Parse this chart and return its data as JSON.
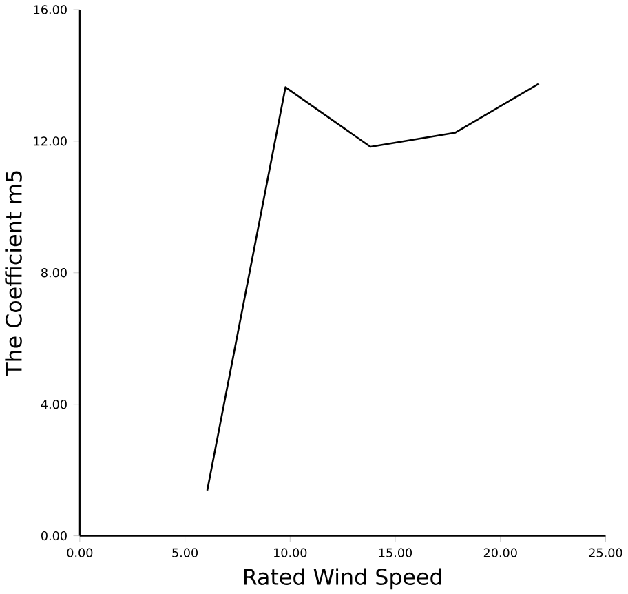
{
  "chart_data": {
    "type": "line",
    "xlabel": "Rated Wind Speed",
    "ylabel": "The Coefficient m5",
    "x": [
      6.06,
      9.78,
      13.82,
      17.86,
      21.83
    ],
    "series": [
      {
        "color": "#000000",
        "values": [
          1.38,
          13.64,
          11.83,
          12.26,
          13.75
        ]
      }
    ],
    "xlim": [
      0,
      25
    ],
    "ylim": [
      0,
      16
    ],
    "xticks": [
      {
        "value": 0,
        "label": "0.00"
      },
      {
        "value": 5,
        "label": "5.00"
      },
      {
        "value": 10,
        "label": "10.00"
      },
      {
        "value": 15,
        "label": "15.00"
      },
      {
        "value": 20,
        "label": "20.00"
      },
      {
        "value": 25,
        "label": "25.00"
      }
    ],
    "yticks": [
      {
        "value": 0,
        "label": "0.00"
      },
      {
        "value": 4,
        "label": "4.00"
      },
      {
        "value": 8,
        "label": "8.00"
      },
      {
        "value": 12,
        "label": "12.00"
      },
      {
        "value": 16,
        "label": "16.00"
      }
    ]
  }
}
